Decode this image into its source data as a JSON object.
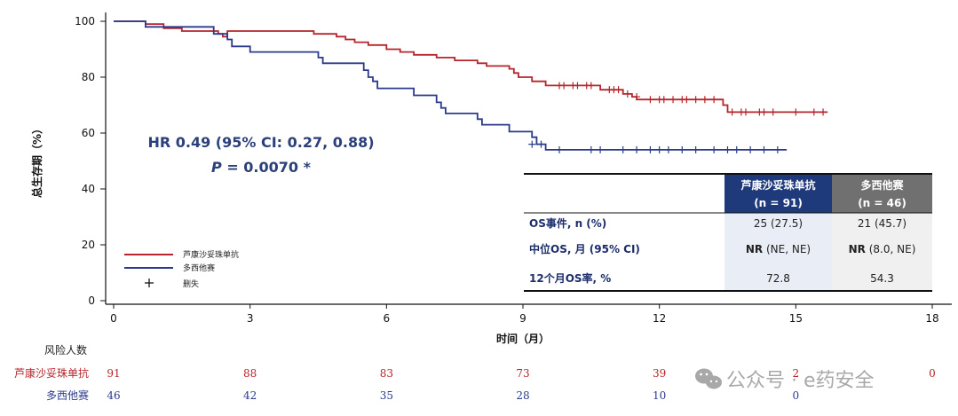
{
  "chart_data": {
    "type": "line",
    "ylabel": "总生存期（%）",
    "xlabel": "时间（月）",
    "xlim": [
      0,
      18
    ],
    "ylim": [
      0,
      100
    ],
    "x_ticks": [
      0,
      3,
      6,
      9,
      12,
      15,
      18
    ],
    "y_ticks": [
      0,
      20,
      40,
      60,
      80,
      100
    ],
    "series": [
      {
        "name": "芦康沙妥珠单抗",
        "color": "#b5252b",
        "points": [
          [
            0,
            100
          ],
          [
            0.7,
            100
          ],
          [
            0.7,
            99
          ],
          [
            1.1,
            99
          ],
          [
            1.1,
            97.5
          ],
          [
            1.5,
            97.5
          ],
          [
            1.5,
            96.5
          ],
          [
            2.3,
            96.5
          ],
          [
            2.3,
            95.5
          ],
          [
            2.4,
            95.5
          ],
          [
            2.4,
            94.5
          ],
          [
            2.5,
            94.5
          ],
          [
            2.5,
            96.5
          ],
          [
            4.4,
            96.5
          ],
          [
            4.4,
            95.5
          ],
          [
            4.9,
            95.5
          ],
          [
            4.9,
            94.5
          ],
          [
            5.1,
            94.5
          ],
          [
            5.1,
            93.5
          ],
          [
            5.3,
            93.5
          ],
          [
            5.3,
            92.5
          ],
          [
            5.6,
            92.5
          ],
          [
            5.6,
            91.5
          ],
          [
            6,
            91.5
          ],
          [
            6,
            90
          ],
          [
            6.3,
            90
          ],
          [
            6.3,
            89
          ],
          [
            6.6,
            89
          ],
          [
            6.6,
            88
          ],
          [
            7.1,
            88
          ],
          [
            7.1,
            87
          ],
          [
            7.5,
            87
          ],
          [
            7.5,
            86
          ],
          [
            8,
            86
          ],
          [
            8,
            85
          ],
          [
            8.2,
            85
          ],
          [
            8.2,
            84
          ],
          [
            8.7,
            84
          ],
          [
            8.7,
            83
          ],
          [
            8.8,
            83
          ],
          [
            8.8,
            81.5
          ],
          [
            8.9,
            81.5
          ],
          [
            8.9,
            80
          ],
          [
            9.2,
            80
          ],
          [
            9.2,
            78.5
          ],
          [
            9.5,
            78.5
          ],
          [
            9.5,
            77
          ],
          [
            10.7,
            77
          ],
          [
            10.7,
            75.5
          ],
          [
            11.2,
            75.5
          ],
          [
            11.2,
            74
          ],
          [
            11.4,
            74
          ],
          [
            11.4,
            73
          ],
          [
            11.5,
            73
          ],
          [
            11.5,
            72
          ],
          [
            13.4,
            72
          ],
          [
            13.4,
            70
          ],
          [
            13.5,
            70
          ],
          [
            13.5,
            67.5
          ],
          [
            15.7,
            67.5
          ]
        ],
        "censored": [
          [
            9.8,
            77
          ],
          [
            9.9,
            77
          ],
          [
            10.1,
            77
          ],
          [
            10.2,
            77
          ],
          [
            10.4,
            77
          ],
          [
            10.5,
            77
          ],
          [
            10.9,
            75.5
          ],
          [
            11,
            75.5
          ],
          [
            11.1,
            75.5
          ],
          [
            11.3,
            74
          ],
          [
            11.5,
            73
          ],
          [
            11.8,
            72
          ],
          [
            12,
            72
          ],
          [
            12.1,
            72
          ],
          [
            12.3,
            72
          ],
          [
            12.5,
            72
          ],
          [
            12.6,
            72
          ],
          [
            12.8,
            72
          ],
          [
            13,
            72
          ],
          [
            13.2,
            72
          ],
          [
            13.6,
            67.5
          ],
          [
            13.8,
            67.5
          ],
          [
            13.9,
            67.5
          ],
          [
            14.2,
            67.5
          ],
          [
            14.3,
            67.5
          ],
          [
            14.5,
            67.5
          ],
          [
            15,
            67.5
          ],
          [
            15.4,
            67.5
          ],
          [
            15.6,
            67.5
          ]
        ]
      },
      {
        "name": "多西他赛",
        "color": "#2b3a8c",
        "points": [
          [
            0,
            100
          ],
          [
            0.7,
            100
          ],
          [
            0.7,
            98
          ],
          [
            2.2,
            98
          ],
          [
            2.2,
            95.5
          ],
          [
            2.5,
            95.5
          ],
          [
            2.5,
            93.5
          ],
          [
            2.6,
            93.5
          ],
          [
            2.6,
            91
          ],
          [
            3,
            91
          ],
          [
            3,
            89
          ],
          [
            4.5,
            89
          ],
          [
            4.5,
            87
          ],
          [
            4.6,
            87
          ],
          [
            4.6,
            85
          ],
          [
            5.5,
            85
          ],
          [
            5.5,
            82.5
          ],
          [
            5.6,
            82.5
          ],
          [
            5.6,
            80
          ],
          [
            5.7,
            80
          ],
          [
            5.7,
            78.5
          ],
          [
            5.8,
            78.5
          ],
          [
            5.8,
            76
          ],
          [
            6.6,
            76
          ],
          [
            6.6,
            73.5
          ],
          [
            7.1,
            73.5
          ],
          [
            7.1,
            71
          ],
          [
            7.2,
            71
          ],
          [
            7.2,
            69
          ],
          [
            7.3,
            69
          ],
          [
            7.3,
            67
          ],
          [
            8.0,
            67
          ],
          [
            8.0,
            65
          ],
          [
            8.1,
            65
          ],
          [
            8.1,
            63
          ],
          [
            8.7,
            63
          ],
          [
            8.7,
            60.5
          ],
          [
            9.2,
            60.5
          ],
          [
            9.2,
            58.5
          ],
          [
            9.3,
            58.5
          ],
          [
            9.3,
            56
          ],
          [
            9.5,
            56
          ],
          [
            9.5,
            54
          ],
          [
            14.8,
            54
          ]
        ],
        "censored": [
          [
            9.2,
            56
          ],
          [
            9.4,
            56
          ],
          [
            9.8,
            54
          ],
          [
            10.5,
            54
          ],
          [
            10.7,
            54
          ],
          [
            11.2,
            54
          ],
          [
            11.5,
            54
          ],
          [
            11.8,
            54
          ],
          [
            12,
            54
          ],
          [
            12.2,
            54
          ],
          [
            12.5,
            54
          ],
          [
            12.8,
            54
          ],
          [
            13.2,
            54
          ],
          [
            13.5,
            54
          ],
          [
            13.7,
            54
          ],
          [
            14,
            54
          ],
          [
            14.3,
            54
          ],
          [
            14.6,
            54
          ]
        ]
      }
    ],
    "legend": [
      {
        "label": "芦康沙妥珠单抗",
        "color": "#b5252b",
        "symbol": "line"
      },
      {
        "label": "多西他赛",
        "color": "#2b3a8c",
        "symbol": "line"
      },
      {
        "label": "删失",
        "color": "#111111",
        "symbol": "plus"
      }
    ],
    "annotation": {
      "hr_line": "HR 0.49 (95% CI: 0.27, 0.88)",
      "p_label": "P",
      "p_value": " = 0.0070 *"
    },
    "table": {
      "headers": [
        {
          "line1": "芦康沙妥珠单抗",
          "line2": "(n = 91)",
          "bg": "#1f3a7a"
        },
        {
          "line1": "多西他赛",
          "line2": "(n = 46)",
          "bg": "#707070"
        }
      ],
      "rows": [
        {
          "label": "OS事件, n (%)",
          "cells": [
            {
              "bold": "",
              "text": "25 (27.5)"
            },
            {
              "bold": "",
              "text": "21 (45.7)"
            }
          ]
        },
        {
          "label": "中位OS, 月 (95% CI)",
          "cells": [
            {
              "bold": "NR",
              "text": " (NE, NE)"
            },
            {
              "bold": "NR",
              "text": " (8.0, NE)"
            }
          ]
        },
        {
          "label": "12个月OS率, %",
          "cells": [
            {
              "bold": "",
              "text": "72.8"
            },
            {
              "bold": "",
              "text": "54.3"
            }
          ]
        }
      ]
    },
    "risk_table": {
      "title": "风险人数",
      "months": [
        0,
        3,
        6,
        9,
        12,
        15,
        18
      ],
      "rows": [
        {
          "label": "芦康沙妥珠单抗",
          "color": "#b5252b",
          "values": [
            "91",
            "88",
            "83",
            "73",
            "39",
            "2",
            "0"
          ]
        },
        {
          "label": "多西他赛",
          "color": "#2b3a8c",
          "values": [
            "46",
            "42",
            "35",
            "28",
            "10",
            "0",
            ""
          ]
        }
      ]
    }
  },
  "watermark": {
    "text": "公众号 · e药安全",
    "icon": "wechat-icon"
  }
}
